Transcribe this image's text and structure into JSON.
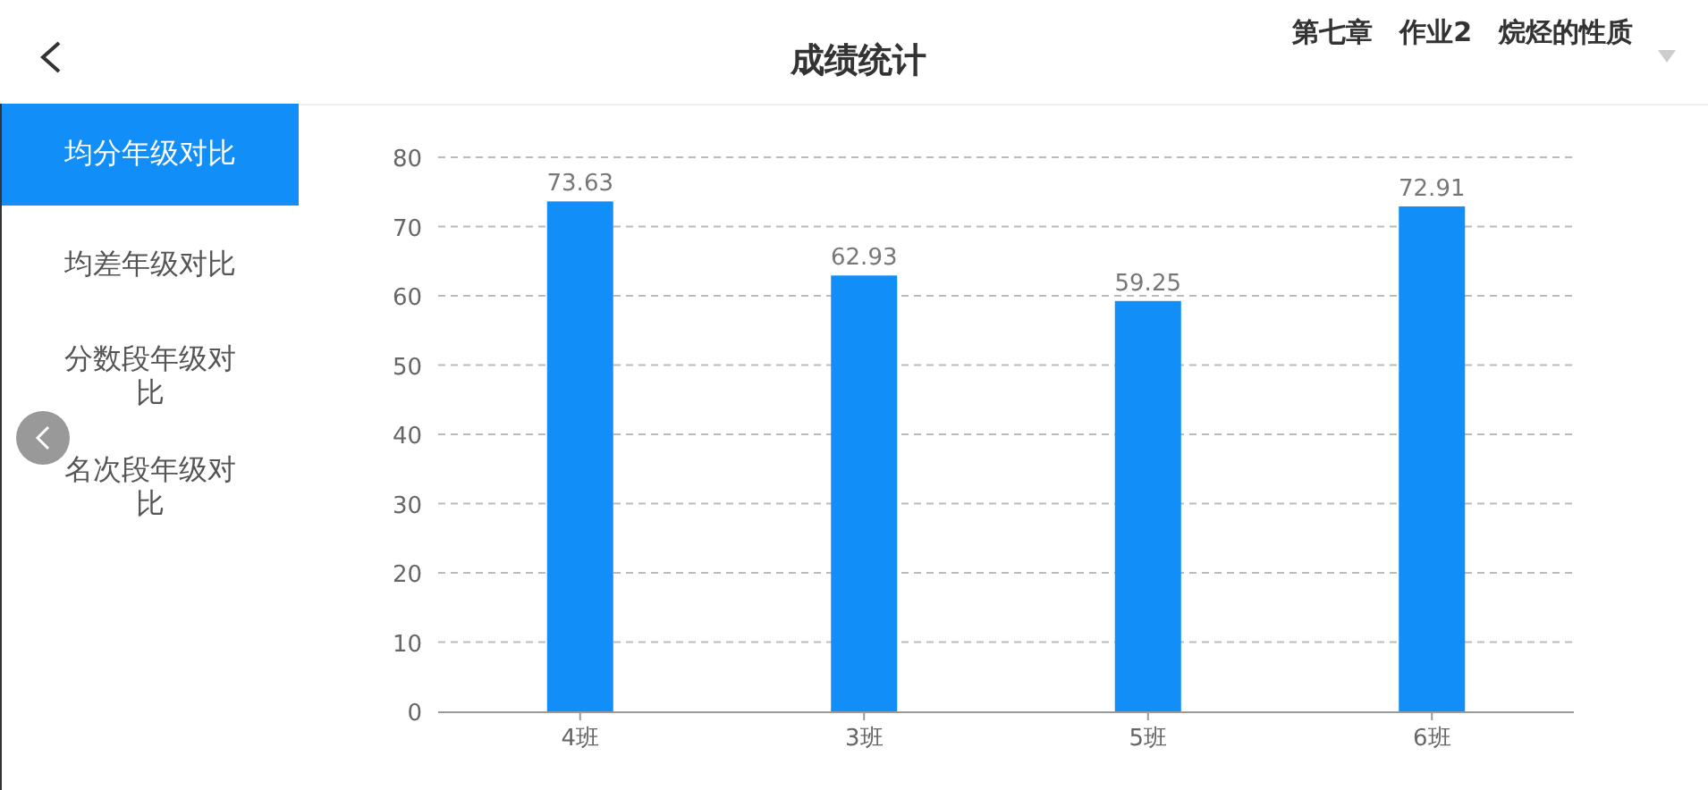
{
  "chart_data": {
    "type": "bar",
    "title": "成绩统计",
    "subtitle": "第七章　作业2　烷烃的性质",
    "annotations": [
      "均分年级对比",
      "均差年级对比",
      "分数段年级对比",
      "名次段年级对比"
    ],
    "categories": [
      "4班",
      "3班",
      "5班",
      "6班"
    ],
    "values": [
      73.63,
      62.93,
      59.25,
      72.91
    ],
    "color": "#118ef7",
    "ylim": [
      0,
      80
    ],
    "yticks": [
      0,
      10,
      20,
      30,
      40,
      50,
      60,
      70,
      80
    ],
    "grid": "y",
    "data_labels": true
  }
}
